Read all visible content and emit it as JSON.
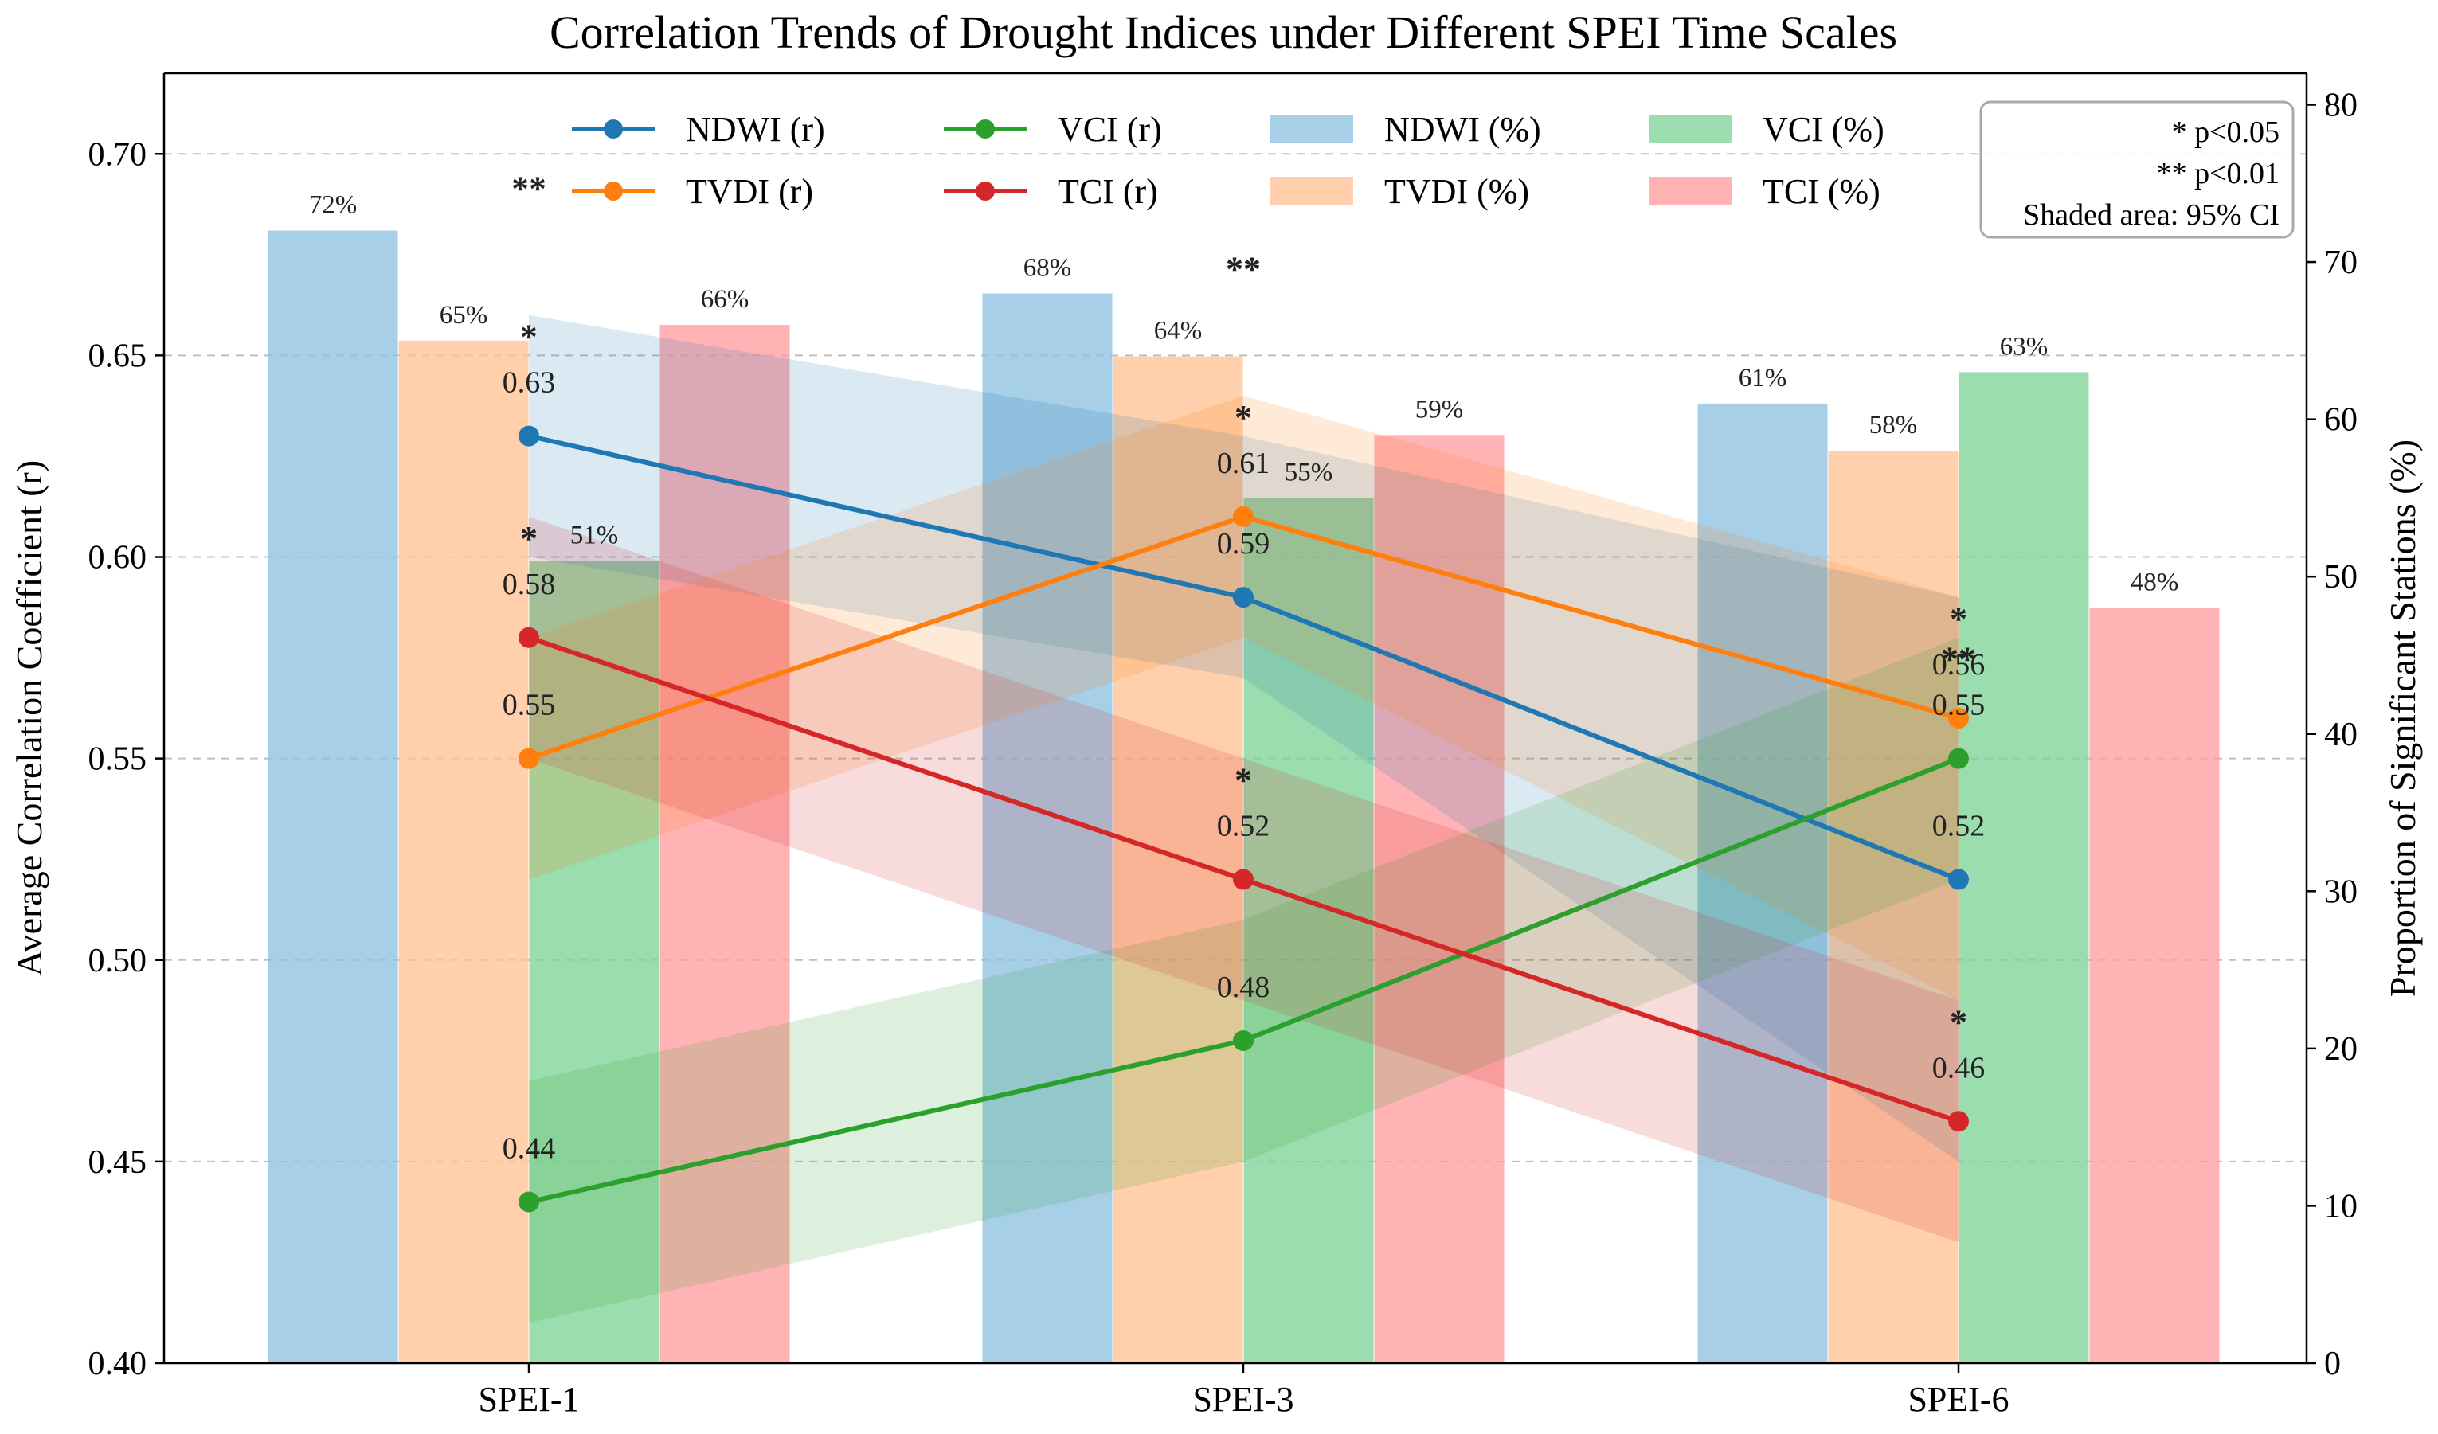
{
  "chart_data": {
    "type": "bar+line",
    "title": "Correlation Trends of Drought Indices under Different SPEI Time Scales",
    "xlabel": "",
    "ylabel_left": "Average Correlation Coefficient (r)",
    "ylabel_right": "Proportion of Significant Stations (%)",
    "categories": [
      "SPEI-1",
      "SPEI-3",
      "SPEI-6"
    ],
    "ylim_left": [
      0.4,
      0.72
    ],
    "ylim_right": [
      0,
      82
    ],
    "yticks_left": [
      0.4,
      0.45,
      0.5,
      0.55,
      0.6,
      0.65,
      0.7
    ],
    "yticks_left_labels": [
      "0.40",
      "0.45",
      "0.50",
      "0.55",
      "0.60",
      "0.65",
      "0.70"
    ],
    "yticks_right": [
      0,
      10,
      20,
      30,
      40,
      50,
      60,
      70,
      80
    ],
    "yticks_right_labels": [
      "0",
      "10",
      "20",
      "30",
      "40",
      "50",
      "60",
      "70",
      "80"
    ],
    "grid": "horizontal dashed",
    "bar_series": [
      {
        "name": "NDWI (%)",
        "color": "#8ec1e2",
        "values": [
          72,
          68,
          61
        ],
        "labels": [
          "72%",
          "68%",
          "61%"
        ]
      },
      {
        "name": "TVDI (%)",
        "color": "#ffc393",
        "values": [
          65,
          64,
          58
        ],
        "labels": [
          "65%",
          "64%",
          "58%"
        ]
      },
      {
        "name": "VCI (%)",
        "color": "#7fd497",
        "values": [
          51,
          55,
          63
        ],
        "labels": [
          "51%",
          "55%",
          "63%"
        ]
      },
      {
        "name": "TCI (%)",
        "color": "#ff9ea0",
        "values": [
          66,
          59,
          48
        ],
        "labels": [
          "66%",
          "59%",
          "48%"
        ]
      }
    ],
    "line_series": [
      {
        "name": "NDWI (r)",
        "color": "#1f77b4",
        "values": [
          0.63,
          0.59,
          0.52
        ],
        "labels": [
          "0.63",
          "0.59",
          "0.52"
        ],
        "ci_low": [
          0.6,
          0.57,
          0.45
        ],
        "ci_high": [
          0.66,
          0.63,
          0.59
        ],
        "significance": [
          "*",
          "",
          ""
        ]
      },
      {
        "name": "TVDI (r)",
        "color": "#ff7f0e",
        "values": [
          0.55,
          0.61,
          0.56
        ],
        "labels": [
          "0.55",
          "0.61",
          "0.56"
        ],
        "ci_low": [
          0.52,
          0.58,
          0.49
        ],
        "ci_high": [
          0.58,
          0.64,
          0.59
        ],
        "significance": [
          "",
          "*",
          "*"
        ]
      },
      {
        "name": "VCI (r)",
        "color": "#2ca02c",
        "values": [
          0.44,
          0.48,
          0.55
        ],
        "labels": [
          "0.44",
          "0.48",
          "0.55"
        ],
        "ci_low": [
          0.41,
          0.45,
          0.52
        ],
        "ci_high": [
          0.47,
          0.51,
          0.58
        ],
        "significance": [
          "",
          "",
          "**"
        ]
      },
      {
        "name": "TCI (r)",
        "color": "#d62728",
        "values": [
          0.58,
          0.52,
          0.46
        ],
        "labels": [
          "0.58",
          "0.52",
          "0.46"
        ],
        "ci_low": [
          0.55,
          0.49,
          0.43
        ],
        "ci_high": [
          0.61,
          0.55,
          0.49
        ],
        "significance": [
          "*",
          "*",
          "*"
        ]
      }
    ],
    "annotations": [
      {
        "text": "**",
        "category": "SPEI-1",
        "value": 0.6885
      },
      {
        "text": "**",
        "category": "SPEI-3",
        "value": 0.6685
      }
    ],
    "legend": {
      "position": "top",
      "items": [
        "NDWI (r)",
        "VCI (r)",
        "NDWI (%)",
        "VCI (%)",
        "TVDI (r)",
        "TCI (r)",
        "TVDI (%)",
        "TCI (%)"
      ]
    },
    "note_box": {
      "position": "top-right",
      "lines": [
        "* p<0.05",
        "** p<0.01",
        "Shaded area: 95% CI"
      ]
    }
  }
}
